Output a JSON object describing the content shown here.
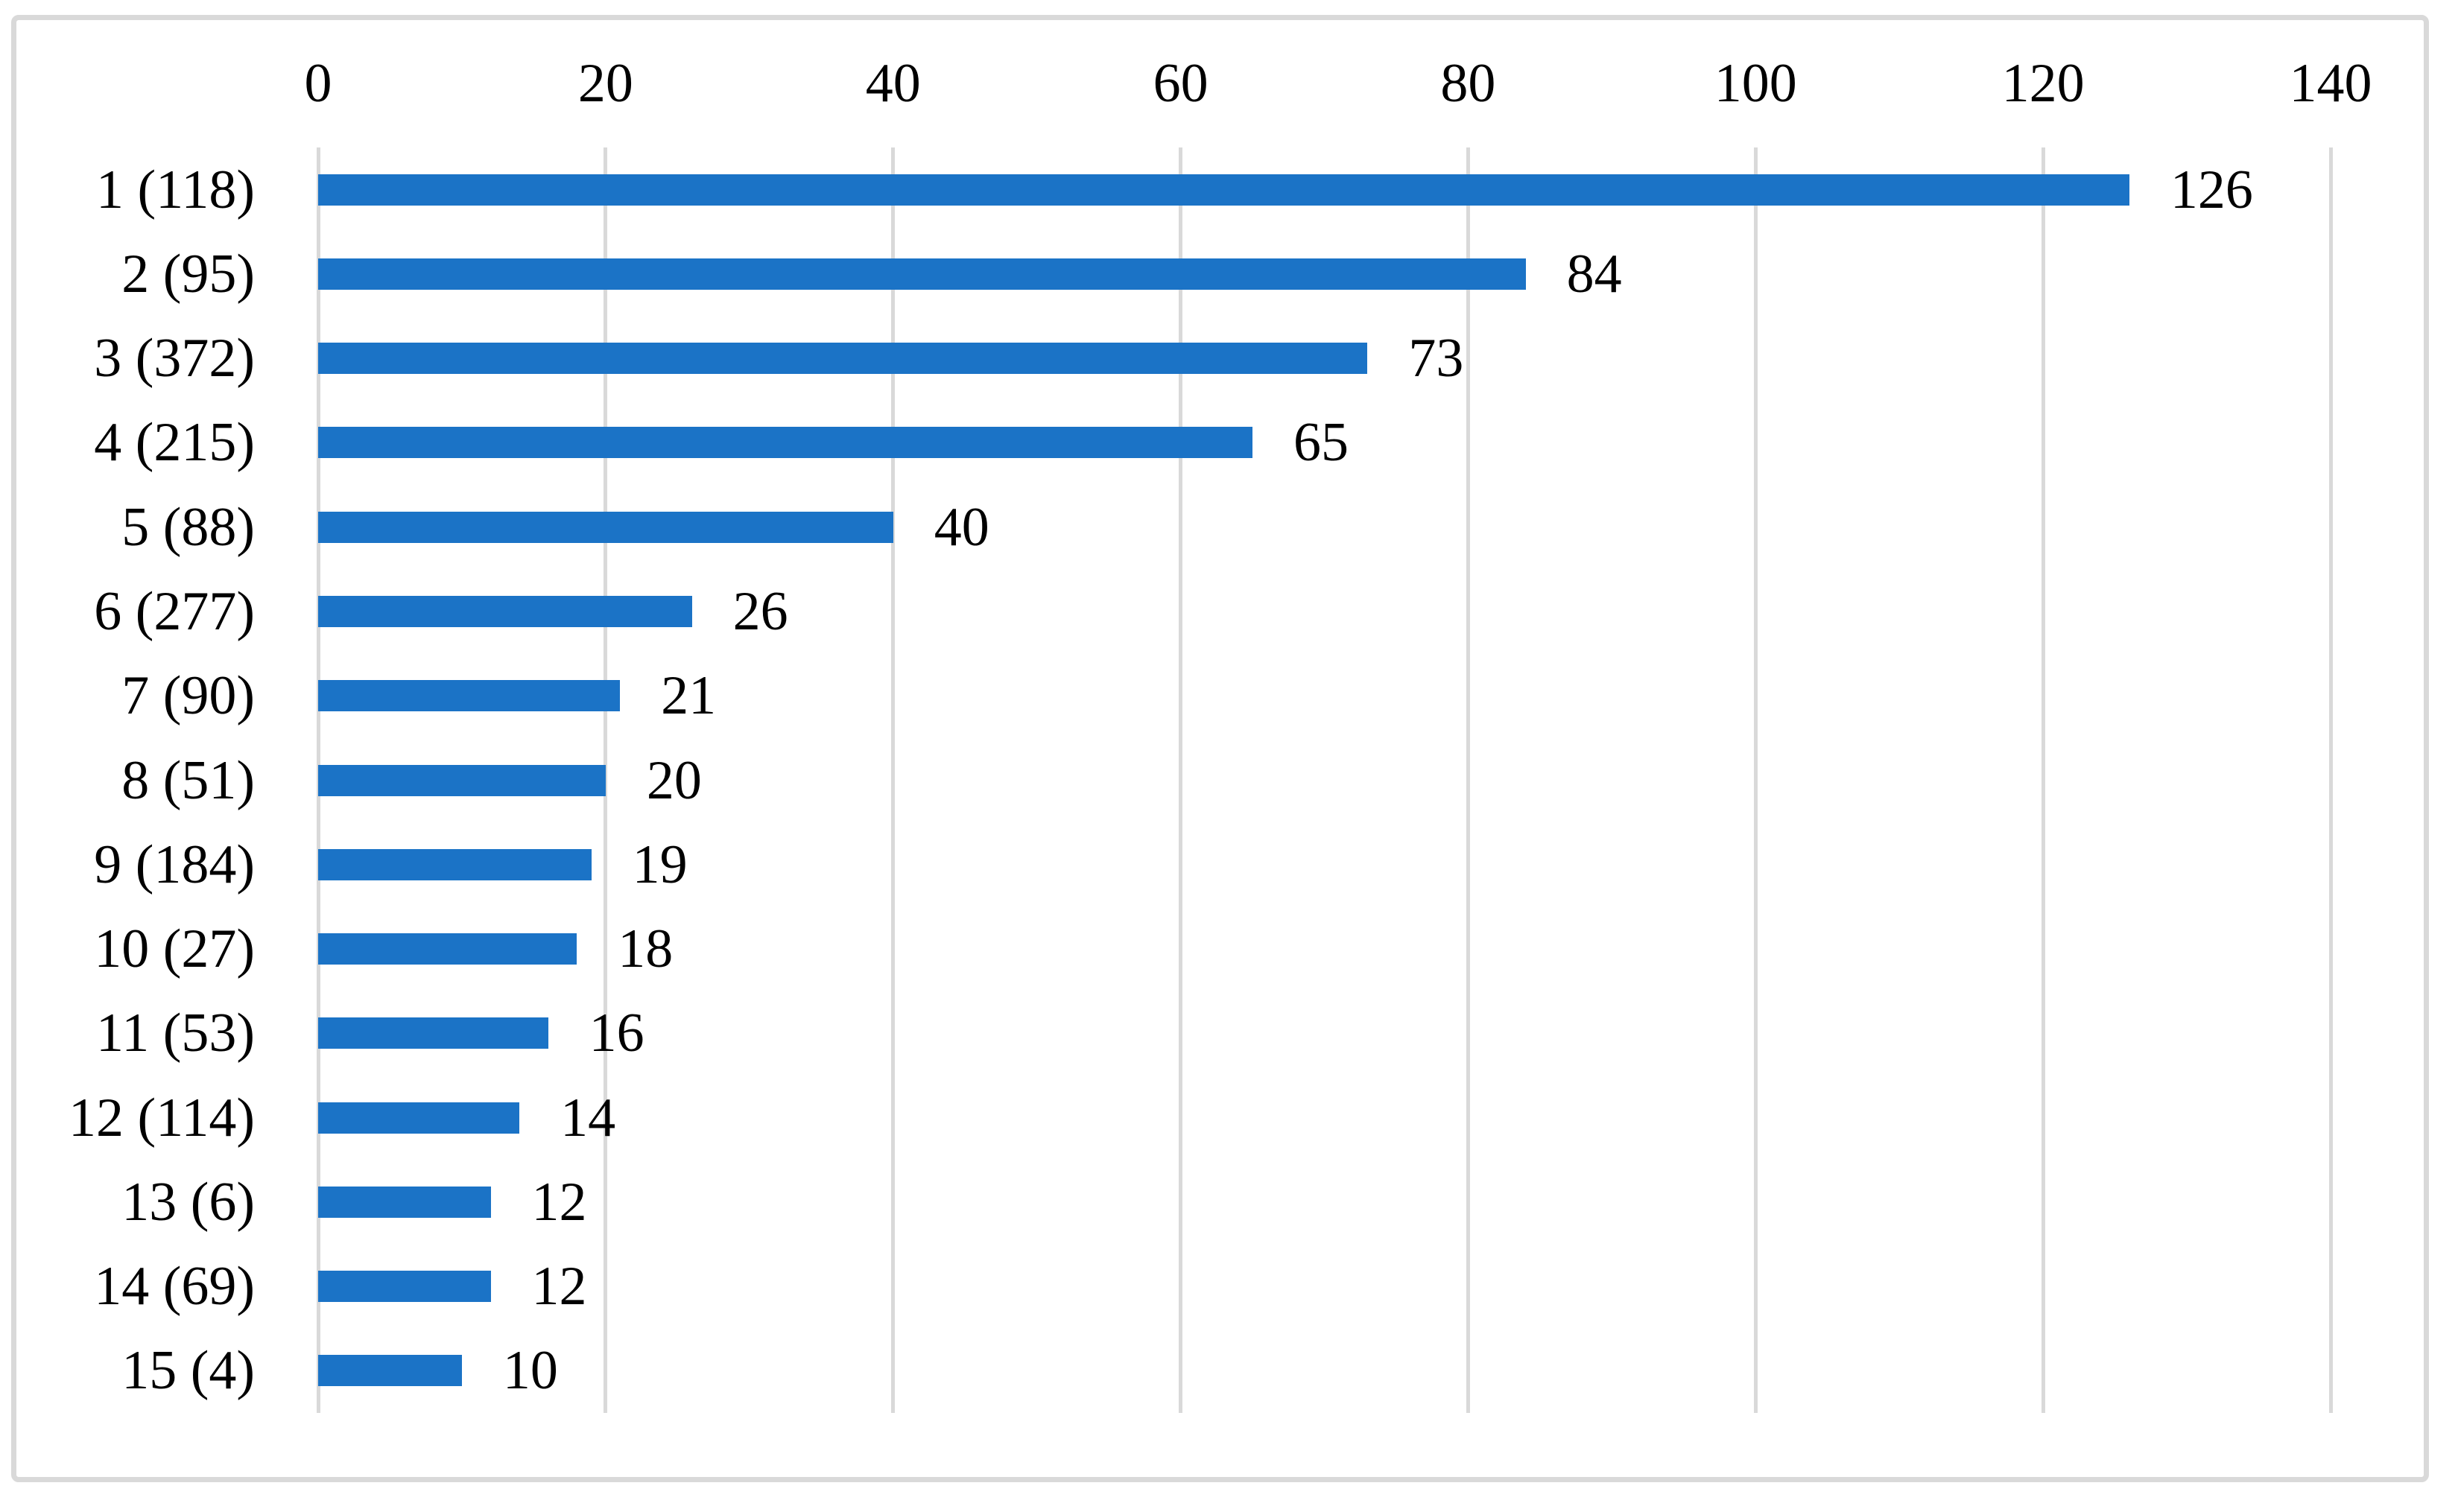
{
  "chart_data": {
    "type": "bar",
    "orientation": "horizontal",
    "title": "",
    "xlabel": "",
    "ylabel": "",
    "categories": [
      "1（118）",
      "2（95）",
      "3（372）",
      "4（215）",
      "5（88）",
      "6（277）",
      "7（90）",
      "8（51）",
      "9（184）",
      "10（27）",
      "11（53）",
      "12（114）",
      "13（6）",
      "14（69）",
      "15（4）"
    ],
    "values": [
      126,
      84,
      73,
      65,
      40,
      26,
      21,
      20,
      19,
      18,
      16,
      14,
      12,
      12,
      10
    ],
    "data_labels": [
      "126",
      "84",
      "73",
      "65",
      "40",
      "26",
      "21",
      "20",
      "19",
      "18",
      "16",
      "14",
      "12",
      "12",
      "10"
    ],
    "x_axis": {
      "position": "top",
      "min": 0,
      "max": 140,
      "tick_interval": 20,
      "tick_labels": [
        "0",
        "20",
        "40",
        "60",
        "80",
        "100",
        "120",
        "140"
      ]
    },
    "grid": "vertical",
    "legend": "none",
    "colors": {
      "bar_fill": "#1b73c6",
      "gridline": "#d9d9d9",
      "frame_border": "#d9d9d9",
      "text": "#000000",
      "background": "#ffffff"
    }
  }
}
